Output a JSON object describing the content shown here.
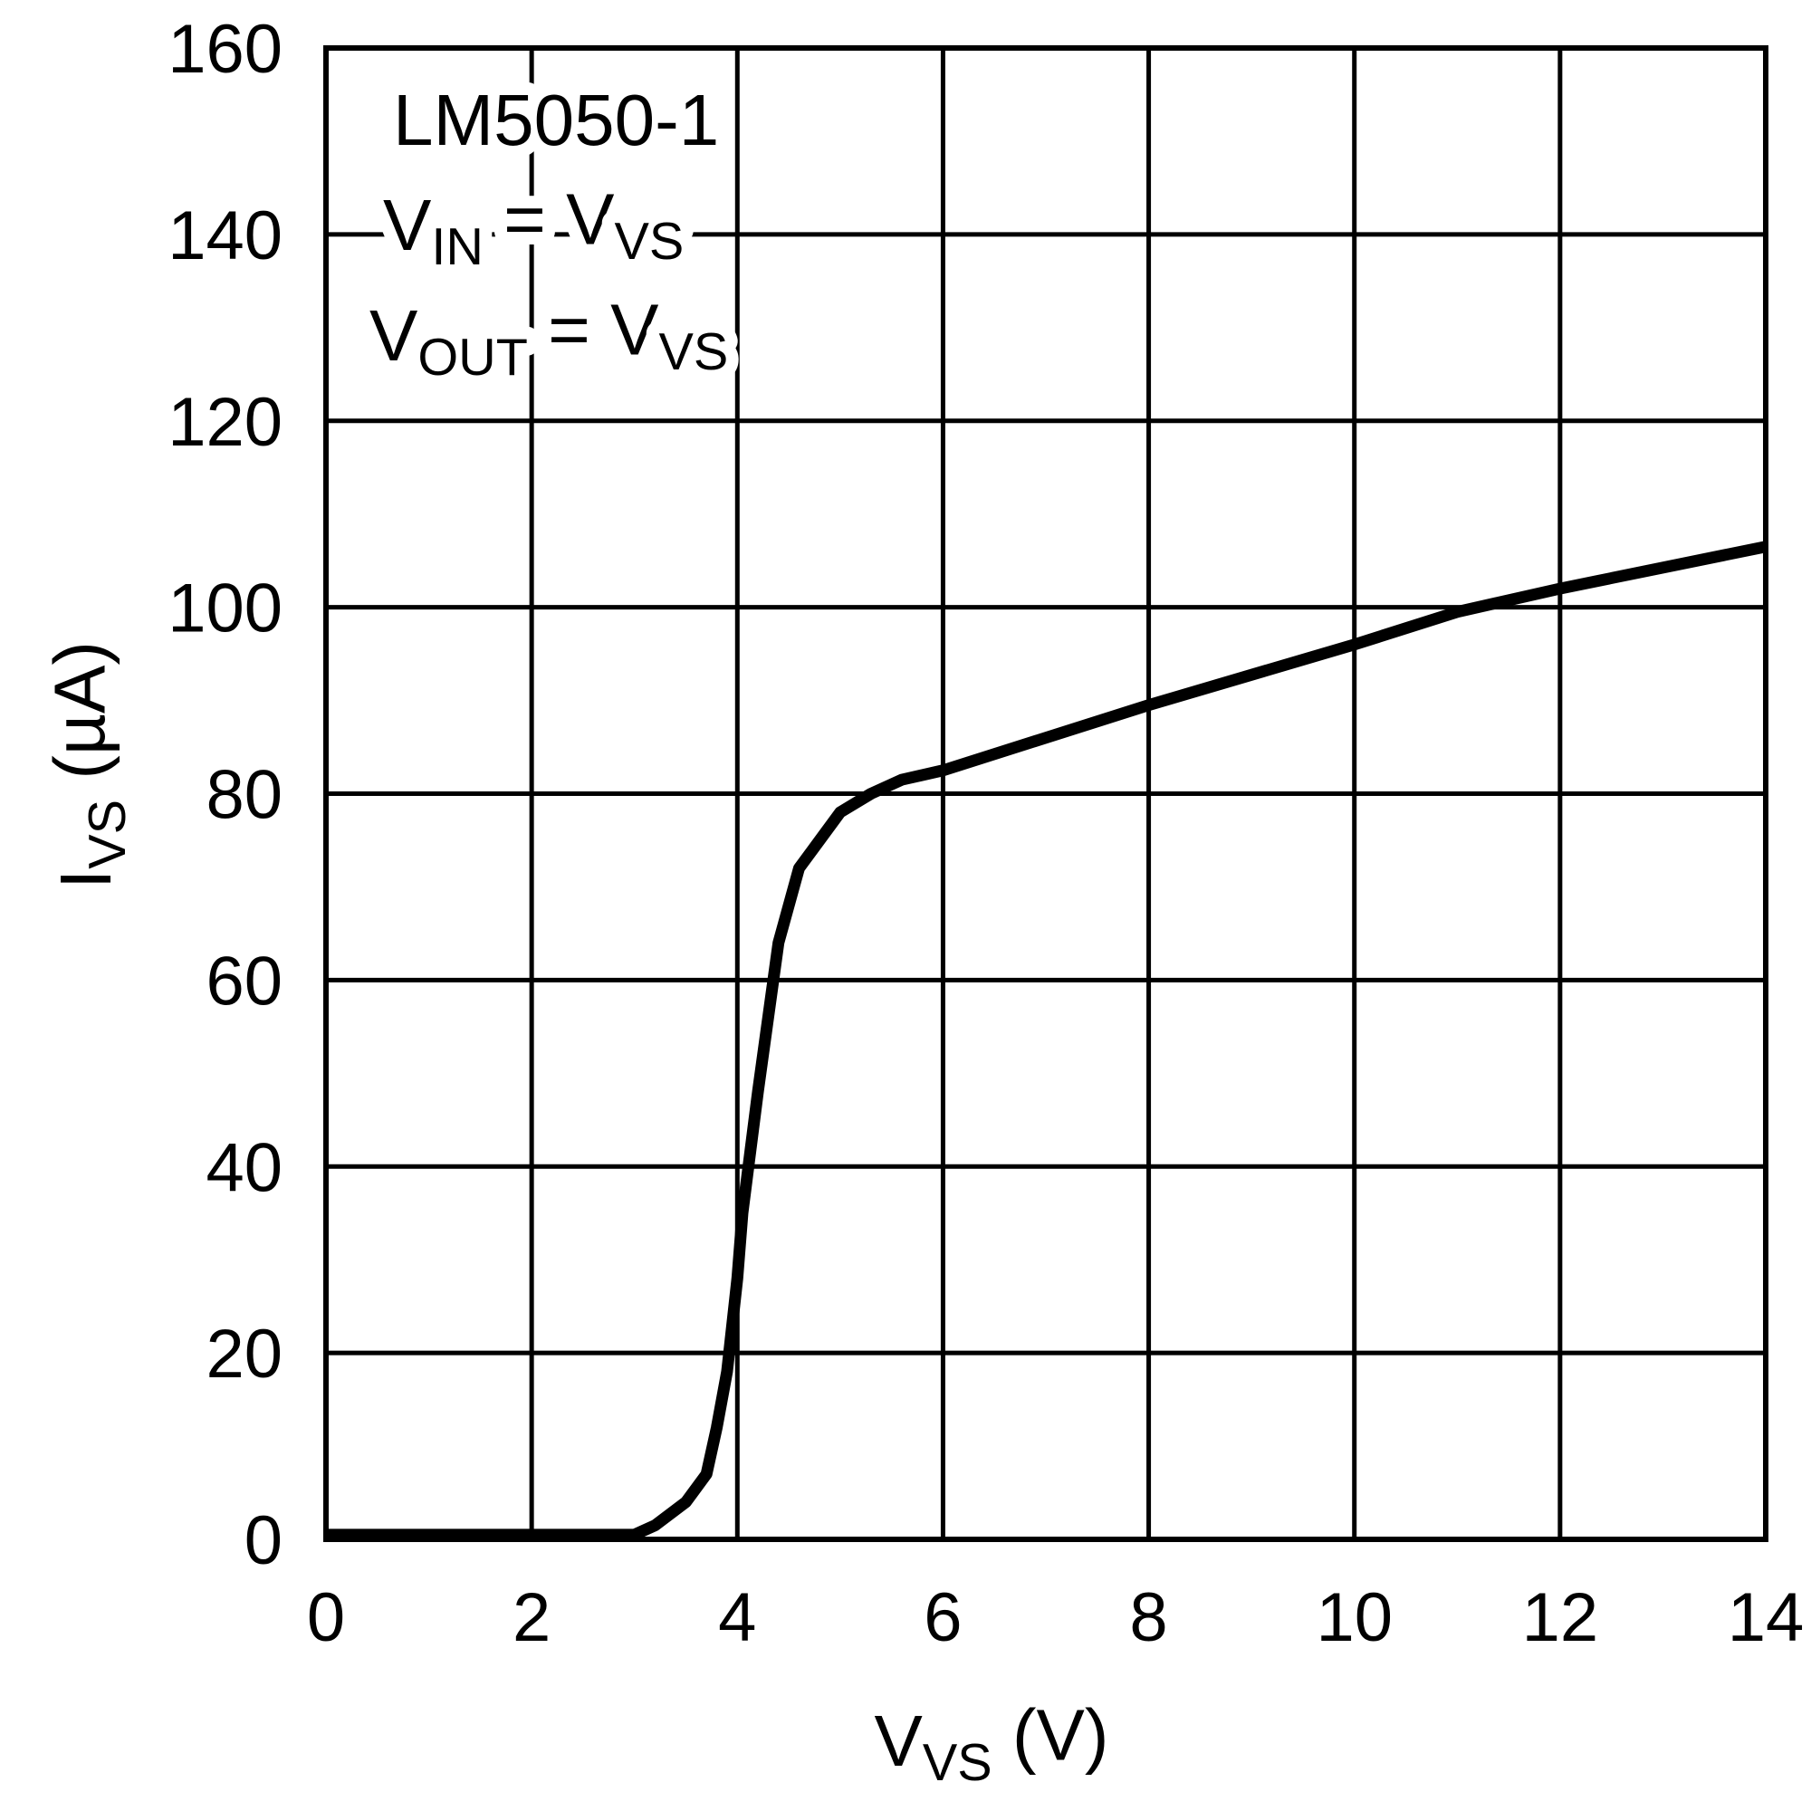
{
  "chart_data": {
    "type": "line",
    "x_label": [
      {
        "text": "V"
      },
      {
        "text": "VS",
        "sub": true
      },
      {
        "text": " (V)"
      }
    ],
    "y_label": [
      {
        "text": "I"
      },
      {
        "text": "VS",
        "sub": true
      },
      {
        "text": " (µA)"
      }
    ],
    "annotations": [
      [
        {
          "text": "LM5050-1"
        }
      ],
      [
        {
          "text": "V"
        },
        {
          "text": "IN",
          "sub": true
        },
        {
          "text": " = V"
        },
        {
          "text": "VS",
          "sub": true
        }
      ],
      [
        {
          "text": "V"
        },
        {
          "text": "OUT",
          "sub": true
        },
        {
          "text": " = V"
        },
        {
          "text": "VS",
          "sub": true
        }
      ]
    ],
    "series": [
      {
        "color": "#000000",
        "x": [
          0,
          3.0,
          3.2,
          3.5,
          3.7,
          3.8,
          3.9,
          4.0,
          4.05,
          4.2,
          4.4,
          4.5,
          4.6,
          4.8,
          5.0,
          5.3,
          5.6,
          6.0,
          8,
          10,
          11,
          12,
          14
        ],
        "values": [
          0.5,
          0.5,
          1.5,
          4,
          7,
          12,
          18,
          28,
          35,
          48,
          64,
          68,
          72,
          75,
          78,
          80,
          81.5,
          82.5,
          89.5,
          96,
          99.5,
          102,
          106.5
        ]
      }
    ],
    "xlim": [
      0,
      14
    ],
    "xticks": [
      0,
      2,
      4,
      6,
      8,
      10,
      12,
      14
    ],
    "ylim": [
      0,
      160
    ],
    "yticks": [
      0,
      20,
      40,
      60,
      80,
      100,
      120,
      140,
      160
    ],
    "grid": true
  }
}
